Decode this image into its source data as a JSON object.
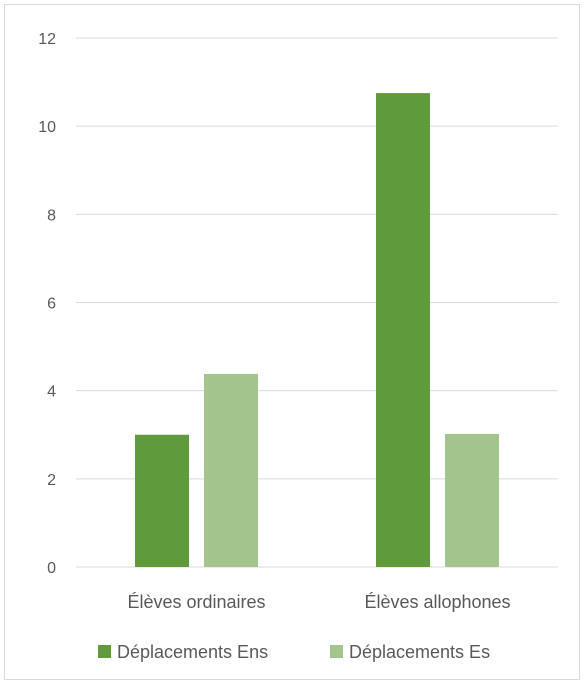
{
  "chart_data": {
    "type": "bar",
    "title": "",
    "xlabel": "",
    "ylabel": "",
    "categories": [
      "Élèves ordinaires",
      "Élèves allophones"
    ],
    "series": [
      {
        "name": "Déplacements Ens",
        "values": [
          3.0,
          10.75
        ],
        "color": "#5f9a3c"
      },
      {
        "name": "Déplacements Es",
        "values": [
          4.38,
          3.02
        ],
        "color": "#a3c58d"
      }
    ],
    "ylim": [
      0,
      12
    ],
    "yticks": [
      0,
      2,
      4,
      6,
      8,
      10,
      12
    ],
    "grid": true,
    "legend": "bottom"
  },
  "colors": {
    "grid": "#d9d9d9",
    "axis": "#d9d9d9",
    "text": "#595959"
  }
}
